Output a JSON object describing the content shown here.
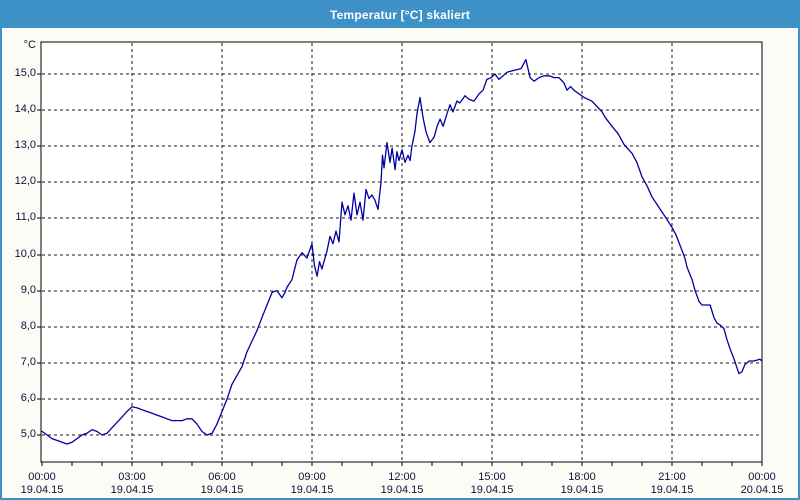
{
  "window": {
    "title": "Temperatur [°C] skaliert"
  },
  "colors": {
    "titlebar_bg": "#3D91C6",
    "frame_border": "#3D91C6",
    "window_bg": "#FBFCF5",
    "plot_bg": "#FFFFFF",
    "axis": "#000000",
    "grid": "#1A1A1A",
    "line": "#0000A0",
    "label_text": "#10103A",
    "title_text": "#FFFFFF"
  },
  "chart_data": {
    "type": "line",
    "title": "Temperatur [°C] skaliert",
    "ylabel": "°C",
    "xlabel": "",
    "ylim": [
      4.2,
      15.9
    ],
    "xlim_hours": [
      0,
      24
    ],
    "grid": true,
    "legend": "none",
    "y_ticks": [
      {
        "value": 15,
        "label": "15,0"
      },
      {
        "value": 14,
        "label": "14,0"
      },
      {
        "value": 13,
        "label": "13,0"
      },
      {
        "value": 12,
        "label": "12,0"
      },
      {
        "value": 11,
        "label": "11,0"
      },
      {
        "value": 10,
        "label": "10,0"
      },
      {
        "value": 9,
        "label": "9,0"
      },
      {
        "value": 8,
        "label": "8,0"
      },
      {
        "value": 7,
        "label": "7,0"
      },
      {
        "value": 6,
        "label": "6,0"
      },
      {
        "value": 5,
        "label": "5,0"
      }
    ],
    "x_ticks": [
      {
        "hour": 0,
        "time": "00:00",
        "date": "19.04.15"
      },
      {
        "hour": 3,
        "time": "03:00",
        "date": "19.04.15"
      },
      {
        "hour": 6,
        "time": "06:00",
        "date": "19.04.15"
      },
      {
        "hour": 9,
        "time": "09:00",
        "date": "19.04.15"
      },
      {
        "hour": 12,
        "time": "12:00",
        "date": "19.04.15"
      },
      {
        "hour": 15,
        "time": "15:00",
        "date": "19.04.15"
      },
      {
        "hour": 18,
        "time": "18:00",
        "date": "19.04.15"
      },
      {
        "hour": 21,
        "time": "21:00",
        "date": "19.04.15"
      },
      {
        "hour": 24,
        "time": "00:00",
        "date": "20.04.15"
      }
    ],
    "minor_x_tick_every_hours": 1,
    "series": [
      {
        "name": "Temperatur",
        "color": "#0000A0",
        "points": [
          [
            0.0,
            5.1
          ],
          [
            0.17,
            5.0
          ],
          [
            0.33,
            4.9
          ],
          [
            0.5,
            4.85
          ],
          [
            0.67,
            4.8
          ],
          [
            0.83,
            4.75
          ],
          [
            1.0,
            4.8
          ],
          [
            1.17,
            4.9
          ],
          [
            1.33,
            5.0
          ],
          [
            1.5,
            5.05
          ],
          [
            1.67,
            5.15
          ],
          [
            1.83,
            5.1
          ],
          [
            2.0,
            5.0
          ],
          [
            2.17,
            5.05
          ],
          [
            2.33,
            5.2
          ],
          [
            2.5,
            5.35
          ],
          [
            2.67,
            5.5
          ],
          [
            2.83,
            5.65
          ],
          [
            3.0,
            5.78
          ],
          [
            3.17,
            5.75
          ],
          [
            3.33,
            5.7
          ],
          [
            3.5,
            5.65
          ],
          [
            3.67,
            5.6
          ],
          [
            3.83,
            5.55
          ],
          [
            4.0,
            5.5
          ],
          [
            4.17,
            5.45
          ],
          [
            4.33,
            5.4
          ],
          [
            4.5,
            5.4
          ],
          [
            4.67,
            5.4
          ],
          [
            4.83,
            5.45
          ],
          [
            5.0,
            5.45
          ],
          [
            5.17,
            5.3
          ],
          [
            5.33,
            5.1
          ],
          [
            5.5,
            5.0
          ],
          [
            5.67,
            5.05
          ],
          [
            5.83,
            5.3
          ],
          [
            6.0,
            5.65
          ],
          [
            6.17,
            6.0
          ],
          [
            6.33,
            6.4
          ],
          [
            6.5,
            6.65
          ],
          [
            6.67,
            6.9
          ],
          [
            6.83,
            7.3
          ],
          [
            7.0,
            7.6
          ],
          [
            7.17,
            7.9
          ],
          [
            7.33,
            8.25
          ],
          [
            7.5,
            8.6
          ],
          [
            7.67,
            8.95
          ],
          [
            7.83,
            9.0
          ],
          [
            8.0,
            8.8
          ],
          [
            8.1,
            8.95
          ],
          [
            8.17,
            9.1
          ],
          [
            8.33,
            9.3
          ],
          [
            8.5,
            9.85
          ],
          [
            8.67,
            10.05
          ],
          [
            8.83,
            9.9
          ],
          [
            9.0,
            10.3
          ],
          [
            9.08,
            9.7
          ],
          [
            9.17,
            9.4
          ],
          [
            9.25,
            9.8
          ],
          [
            9.33,
            9.6
          ],
          [
            9.5,
            10.1
          ],
          [
            9.6,
            10.5
          ],
          [
            9.7,
            10.3
          ],
          [
            9.8,
            10.65
          ],
          [
            9.9,
            10.35
          ],
          [
            10.0,
            11.45
          ],
          [
            10.1,
            11.1
          ],
          [
            10.2,
            11.35
          ],
          [
            10.3,
            10.95
          ],
          [
            10.4,
            11.7
          ],
          [
            10.5,
            11.1
          ],
          [
            10.6,
            11.45
          ],
          [
            10.7,
            10.95
          ],
          [
            10.8,
            11.8
          ],
          [
            10.9,
            11.55
          ],
          [
            11.0,
            11.65
          ],
          [
            11.1,
            11.5
          ],
          [
            11.2,
            11.25
          ],
          [
            11.3,
            12.0
          ],
          [
            11.35,
            12.75
          ],
          [
            11.4,
            12.4
          ],
          [
            11.5,
            13.1
          ],
          [
            11.6,
            12.55
          ],
          [
            11.67,
            12.95
          ],
          [
            11.77,
            12.35
          ],
          [
            11.83,
            12.85
          ],
          [
            11.9,
            12.6
          ],
          [
            12.0,
            12.9
          ],
          [
            12.1,
            12.55
          ],
          [
            12.2,
            12.75
          ],
          [
            12.27,
            12.6
          ],
          [
            12.33,
            13.0
          ],
          [
            12.43,
            13.4
          ],
          [
            12.5,
            13.9
          ],
          [
            12.6,
            14.35
          ],
          [
            12.7,
            13.8
          ],
          [
            12.8,
            13.4
          ],
          [
            12.93,
            13.1
          ],
          [
            13.07,
            13.25
          ],
          [
            13.17,
            13.55
          ],
          [
            13.27,
            13.75
          ],
          [
            13.37,
            13.55
          ],
          [
            13.5,
            13.9
          ],
          [
            13.6,
            14.15
          ],
          [
            13.7,
            13.95
          ],
          [
            13.83,
            14.25
          ],
          [
            13.93,
            14.2
          ],
          [
            14.1,
            14.4
          ],
          [
            14.23,
            14.3
          ],
          [
            14.4,
            14.25
          ],
          [
            14.57,
            14.45
          ],
          [
            14.7,
            14.55
          ],
          [
            14.83,
            14.85
          ],
          [
            14.97,
            14.9
          ],
          [
            15.1,
            15.0
          ],
          [
            15.23,
            14.85
          ],
          [
            15.37,
            14.95
          ],
          [
            15.5,
            15.05
          ],
          [
            15.73,
            15.1
          ],
          [
            15.97,
            15.15
          ],
          [
            16.13,
            15.4
          ],
          [
            16.27,
            14.9
          ],
          [
            16.4,
            14.8
          ],
          [
            16.57,
            14.9
          ],
          [
            16.73,
            14.95
          ],
          [
            16.9,
            14.95
          ],
          [
            17.07,
            14.9
          ],
          [
            17.23,
            14.9
          ],
          [
            17.4,
            14.75
          ],
          [
            17.5,
            14.55
          ],
          [
            17.62,
            14.65
          ],
          [
            17.73,
            14.55
          ],
          [
            17.9,
            14.45
          ],
          [
            18.07,
            14.35
          ],
          [
            18.2,
            14.3
          ],
          [
            18.33,
            14.25
          ],
          [
            18.5,
            14.1
          ],
          [
            18.67,
            13.95
          ],
          [
            18.77,
            13.8
          ],
          [
            19.0,
            13.55
          ],
          [
            19.2,
            13.35
          ],
          [
            19.4,
            13.05
          ],
          [
            19.67,
            12.8
          ],
          [
            19.83,
            12.55
          ],
          [
            20.0,
            12.15
          ],
          [
            20.17,
            11.9
          ],
          [
            20.33,
            11.6
          ],
          [
            20.57,
            11.3
          ],
          [
            20.77,
            11.05
          ],
          [
            21.0,
            10.75
          ],
          [
            21.13,
            10.55
          ],
          [
            21.27,
            10.25
          ],
          [
            21.43,
            9.9
          ],
          [
            21.5,
            9.65
          ],
          [
            21.67,
            9.3
          ],
          [
            21.77,
            9.0
          ],
          [
            21.9,
            8.7
          ],
          [
            22.0,
            8.6
          ],
          [
            22.13,
            8.6
          ],
          [
            22.27,
            8.6
          ],
          [
            22.4,
            8.25
          ],
          [
            22.5,
            8.1
          ],
          [
            22.6,
            8.05
          ],
          [
            22.73,
            7.95
          ],
          [
            22.83,
            7.65
          ],
          [
            22.93,
            7.4
          ],
          [
            23.07,
            7.1
          ],
          [
            23.17,
            6.85
          ],
          [
            23.23,
            6.7
          ],
          [
            23.33,
            6.75
          ],
          [
            23.43,
            6.95
          ],
          [
            23.57,
            7.05
          ],
          [
            23.73,
            7.05
          ],
          [
            23.93,
            7.1
          ],
          [
            24.0,
            7.05
          ]
        ]
      }
    ]
  }
}
